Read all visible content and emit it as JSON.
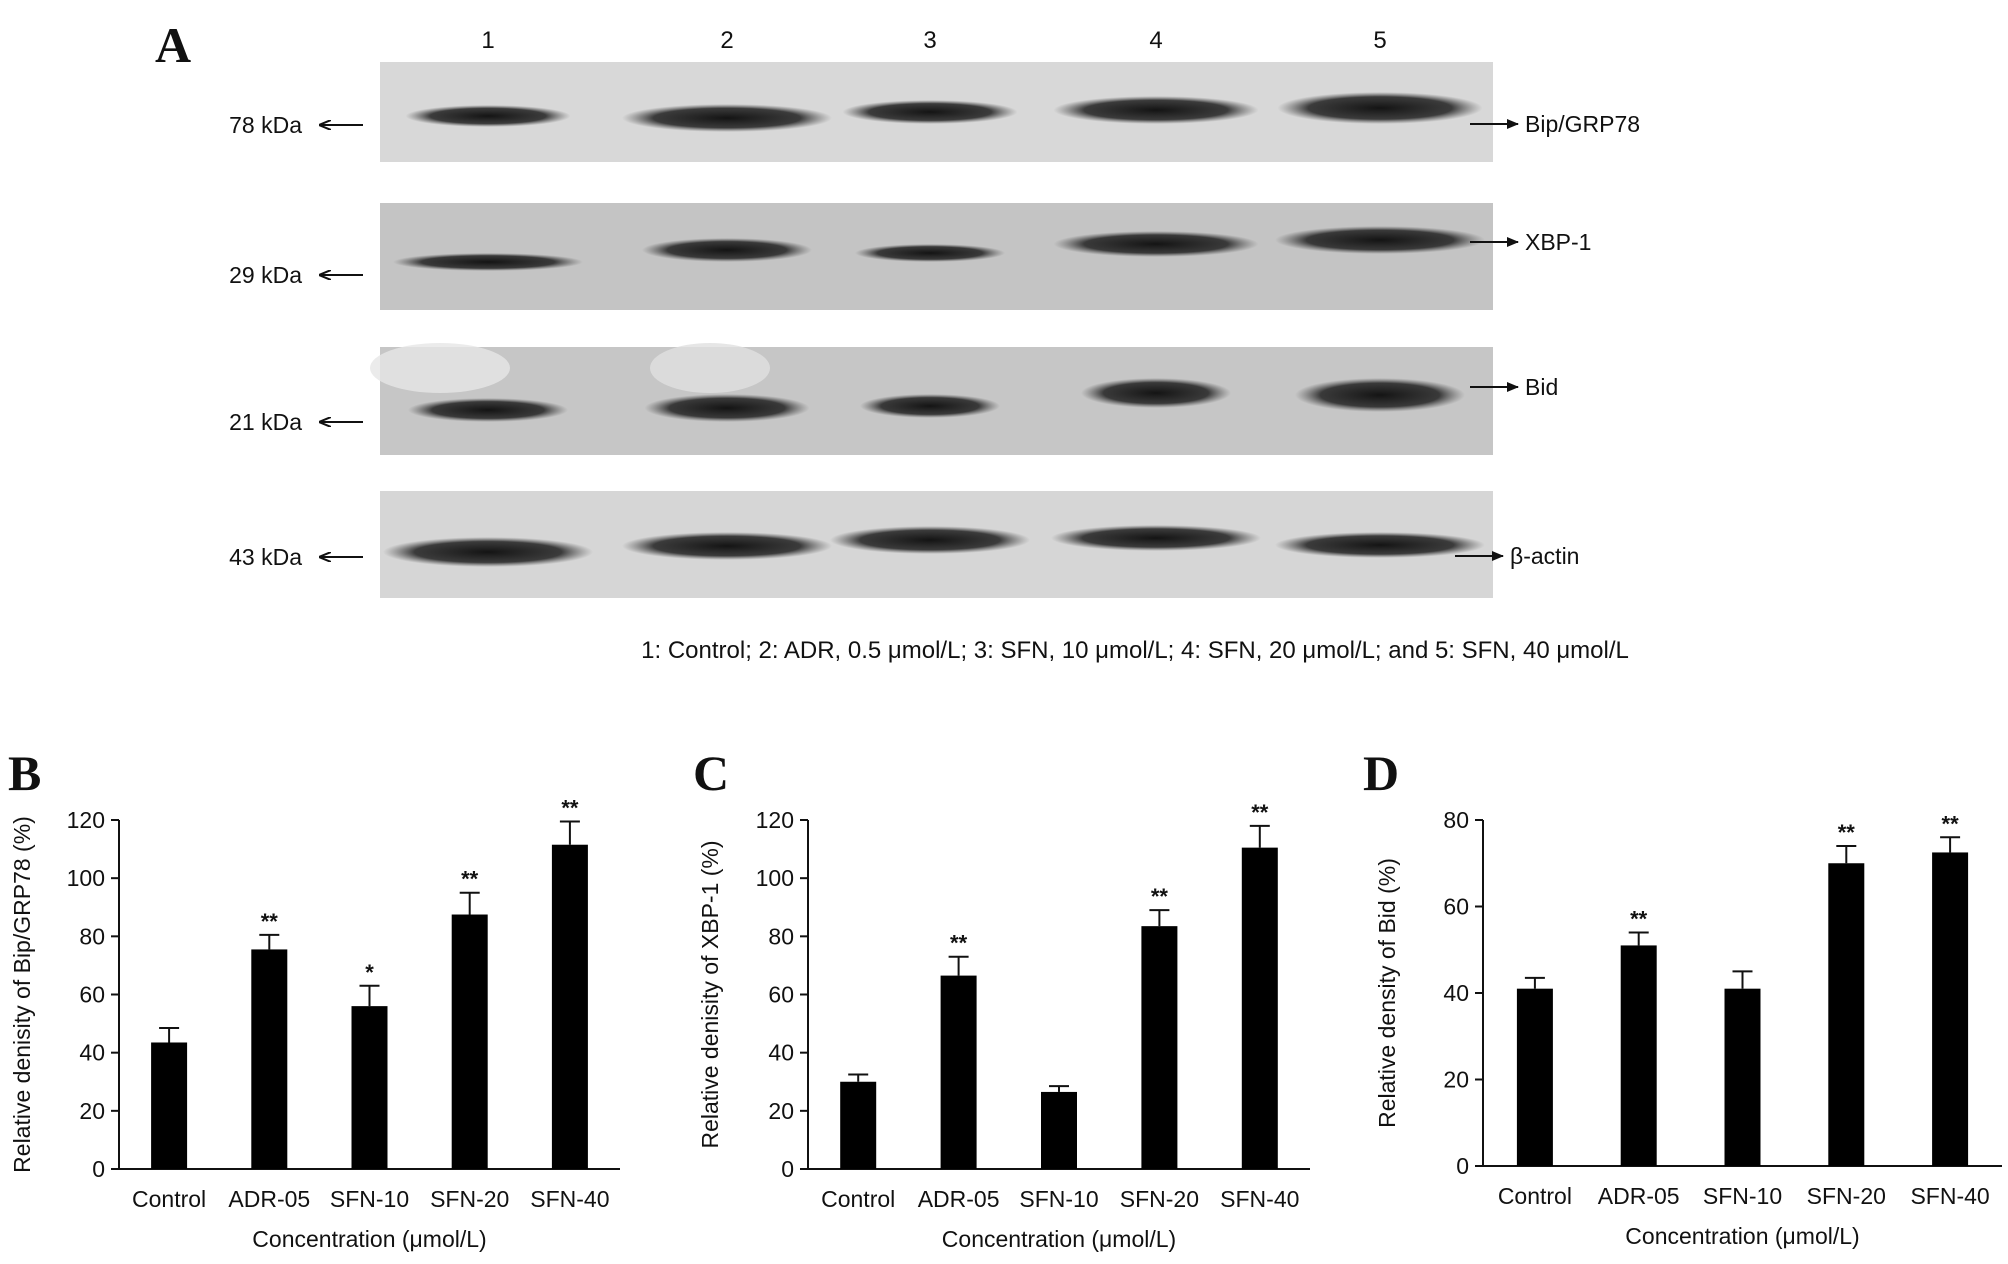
{
  "panel_a": {
    "letter": "A",
    "lanes": [
      "1",
      "2",
      "3",
      "4",
      "5"
    ],
    "blots": [
      {
        "kda": "78 kDa",
        "protein": "Bip/GRP78"
      },
      {
        "kda": "29 kDa",
        "protein": "XBP-1"
      },
      {
        "kda": "21 kDa",
        "protein": "Bid"
      },
      {
        "kda": "43 kDa",
        "protein": "β-actin"
      }
    ],
    "legend": "1: Control; 2: ADR, 0.5 μmol/L; 3: SFN, 10 μmol/L; 4: SFN, 20 μmol/L; and 5: SFN, 40 μmol/L"
  },
  "chart_data": [
    {
      "type": "bar",
      "letter": "B",
      "categories": [
        "Control",
        "ADR-05",
        "SFN-10",
        "SFN-20",
        "SFN-40"
      ],
      "values": [
        43.5,
        75.5,
        56,
        87.5,
        111.5
      ],
      "errors": [
        5,
        5,
        7,
        7.5,
        8
      ],
      "significance": [
        "",
        "**",
        "*",
        "**",
        "**"
      ],
      "xlabel": "Concentration (μmol/L)",
      "ylabel": "Relative denisity of Bip/GRP78 (%)",
      "ylim": [
        0,
        120
      ],
      "yticks": [
        0,
        20,
        40,
        60,
        80,
        100,
        120
      ],
      "grid": false,
      "bar_color": "#000000"
    },
    {
      "type": "bar",
      "letter": "C",
      "categories": [
        "Control",
        "ADR-05",
        "SFN-10",
        "SFN-20",
        "SFN-40"
      ],
      "values": [
        30,
        66.5,
        26.5,
        83.5,
        110.5
      ],
      "errors": [
        2.5,
        6.5,
        2,
        5.5,
        7.5
      ],
      "significance": [
        "",
        "**",
        "",
        "**",
        "**"
      ],
      "xlabel": "Concentration (μmol/L)",
      "ylabel": "Relative denisity of XBP-1 (%)",
      "ylim": [
        0,
        120
      ],
      "yticks": [
        0,
        20,
        40,
        60,
        80,
        100,
        120
      ],
      "grid": false,
      "bar_color": "#000000"
    },
    {
      "type": "bar",
      "letter": "D",
      "categories": [
        "Control",
        "ADR-05",
        "SFN-10",
        "SFN-20",
        "SFN-40"
      ],
      "values": [
        41,
        51,
        41,
        70,
        72.5
      ],
      "errors": [
        2.5,
        3,
        4,
        4,
        3.5
      ],
      "significance": [
        "",
        "**",
        "",
        "**",
        "**"
      ],
      "xlabel": "Concentration (μmol/L)",
      "ylabel": "Relative density of Bid (%)",
      "ylim": [
        0,
        80
      ],
      "yticks": [
        0,
        20,
        40,
        60,
        80
      ],
      "grid": false,
      "bar_color": "#000000"
    }
  ]
}
